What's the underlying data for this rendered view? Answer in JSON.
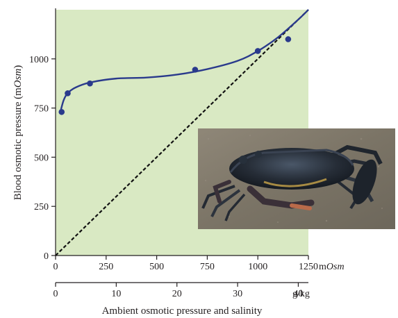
{
  "chart_data": {
    "type": "scatter",
    "title": "",
    "xlabel": "Ambient osmotic pressure and salinity",
    "ylabel": "Blood osmotic pressure (mOsm)",
    "ylabel_parts": {
      "prefix": "Blood osmotic pressure (m",
      "italic": "Osm",
      "suffix": ")"
    },
    "x_unit_label": {
      "prefix": "m",
      "italic": "Osm"
    },
    "salinity_unit_label": "g/kg",
    "xlim": [
      0,
      1250
    ],
    "ylim": [
      0,
      1250
    ],
    "x_ticks": [
      0,
      250,
      500,
      750,
      1000,
      1250
    ],
    "y_ticks": [
      0,
      250,
      500,
      750,
      1000
    ],
    "salinity_ticks": [
      0,
      10,
      20,
      30,
      40
    ],
    "salinity_max": 40,
    "grid": false,
    "plot_background": "#d9e9c3",
    "point_color": "#2a3a8c",
    "series": [
      {
        "values_xy": [
          [
            30,
            730
          ],
          [
            60,
            825
          ],
          [
            170,
            875
          ],
          [
            690,
            945
          ],
          [
            1000,
            1040
          ],
          [
            1150,
            1100
          ]
        ]
      }
    ],
    "fitted_curve_xy": [
      [
        25,
        735
      ],
      [
        40,
        790
      ],
      [
        60,
        826
      ],
      [
        100,
        855
      ],
      [
        170,
        880
      ],
      [
        300,
        900
      ],
      [
        450,
        905
      ],
      [
        600,
        920
      ],
      [
        750,
        948
      ],
      [
        900,
        990
      ],
      [
        1000,
        1040
      ],
      [
        1100,
        1110
      ],
      [
        1200,
        1200
      ],
      [
        1250,
        1250
      ]
    ],
    "reference_line": {
      "style": "dashed",
      "from": [
        0,
        0
      ],
      "to": [
        1250,
        1250
      ]
    },
    "photo": {
      "subject": "crab-photo"
    }
  }
}
